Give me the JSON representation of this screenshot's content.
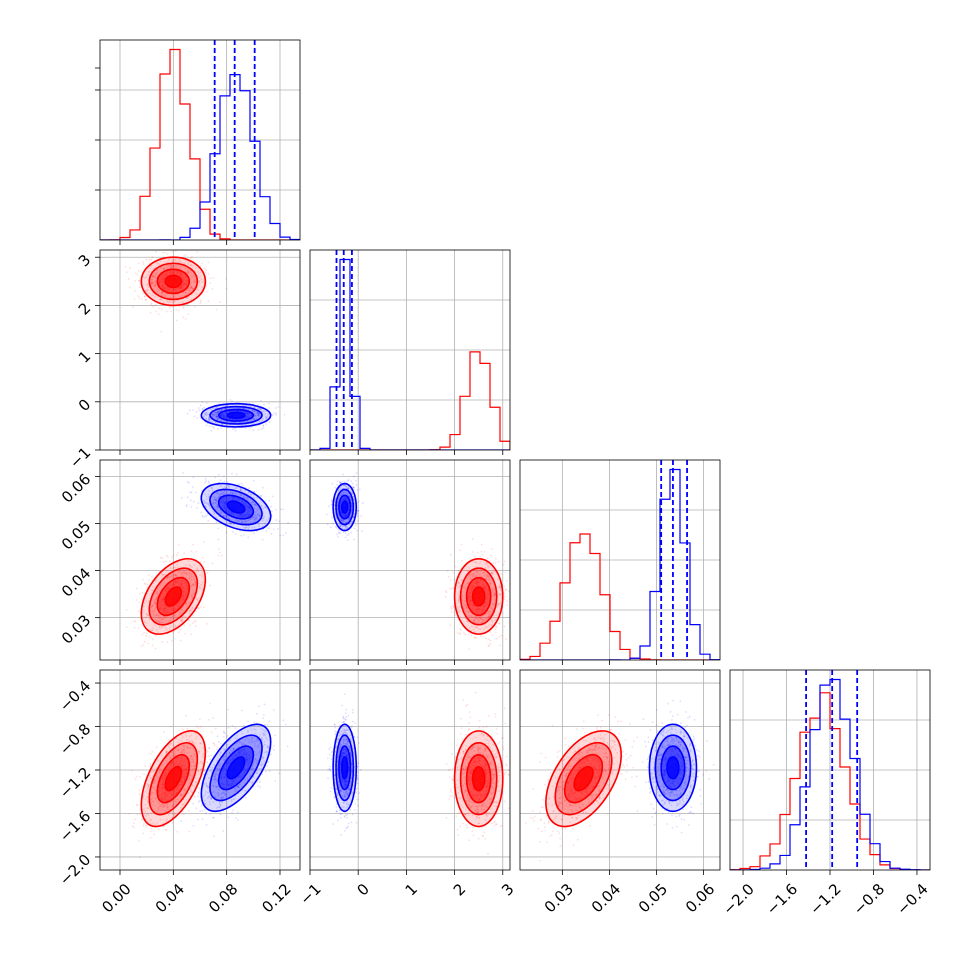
{
  "chart_data": {
    "type": "corner",
    "grid": true,
    "parameters": [
      {
        "range": [
          -0.015,
          0.135
        ],
        "ticks": [
          0.0,
          0.04,
          0.08,
          0.12
        ],
        "tick_labels": [
          "0.00",
          "0.04",
          "0.08",
          "0.12"
        ]
      },
      {
        "range": [
          -1.0,
          3.15
        ],
        "ticks": [
          -1,
          0,
          1,
          2,
          3
        ],
        "tick_labels": [
          "−1",
          "0",
          "1",
          "2",
          "3"
        ]
      },
      {
        "range": [
          0.021,
          0.0635
        ],
        "ticks": [
          0.03,
          0.04,
          0.05,
          0.06
        ],
        "tick_labels": [
          "0.03",
          "0.04",
          "0.05",
          "0.06"
        ]
      },
      {
        "range": [
          -2.12,
          -0.28
        ],
        "ticks": [
          -2.0,
          -1.6,
          -1.2,
          -0.8,
          -0.4
        ],
        "tick_labels": [
          "−2.0",
          "−1.6",
          "−1.2",
          "−0.8",
          "−0.4"
        ]
      }
    ],
    "series": [
      {
        "color": "#ff0000",
        "means": [
          0.04,
          2.5,
          0.0345,
          -1.28
        ],
        "sds": [
          0.012,
          0.25,
          0.004,
          0.22
        ],
        "correlations": [
          [
            0,
            2,
            0.45
          ],
          [
            0,
            3,
            0.55
          ],
          [
            2,
            3,
            0.5
          ]
        ],
        "quantiles": null
      },
      {
        "color": "#0000ff",
        "means": [
          0.087,
          -0.28,
          0.0535,
          -1.18
        ],
        "sds": [
          0.013,
          0.12,
          0.0025,
          0.2
        ],
        "correlations": [
          [
            0,
            2,
            -0.4
          ],
          [
            0,
            3,
            0.6
          ]
        ],
        "quantiles": [
          [
            0.071,
            0.086,
            0.101
          ],
          [
            -0.45,
            -0.3,
            -0.13
          ],
          [
            0.051,
            0.0535,
            0.0565
          ],
          [
            -1.42,
            -1.18,
            -0.95
          ]
        ]
      }
    ]
  }
}
